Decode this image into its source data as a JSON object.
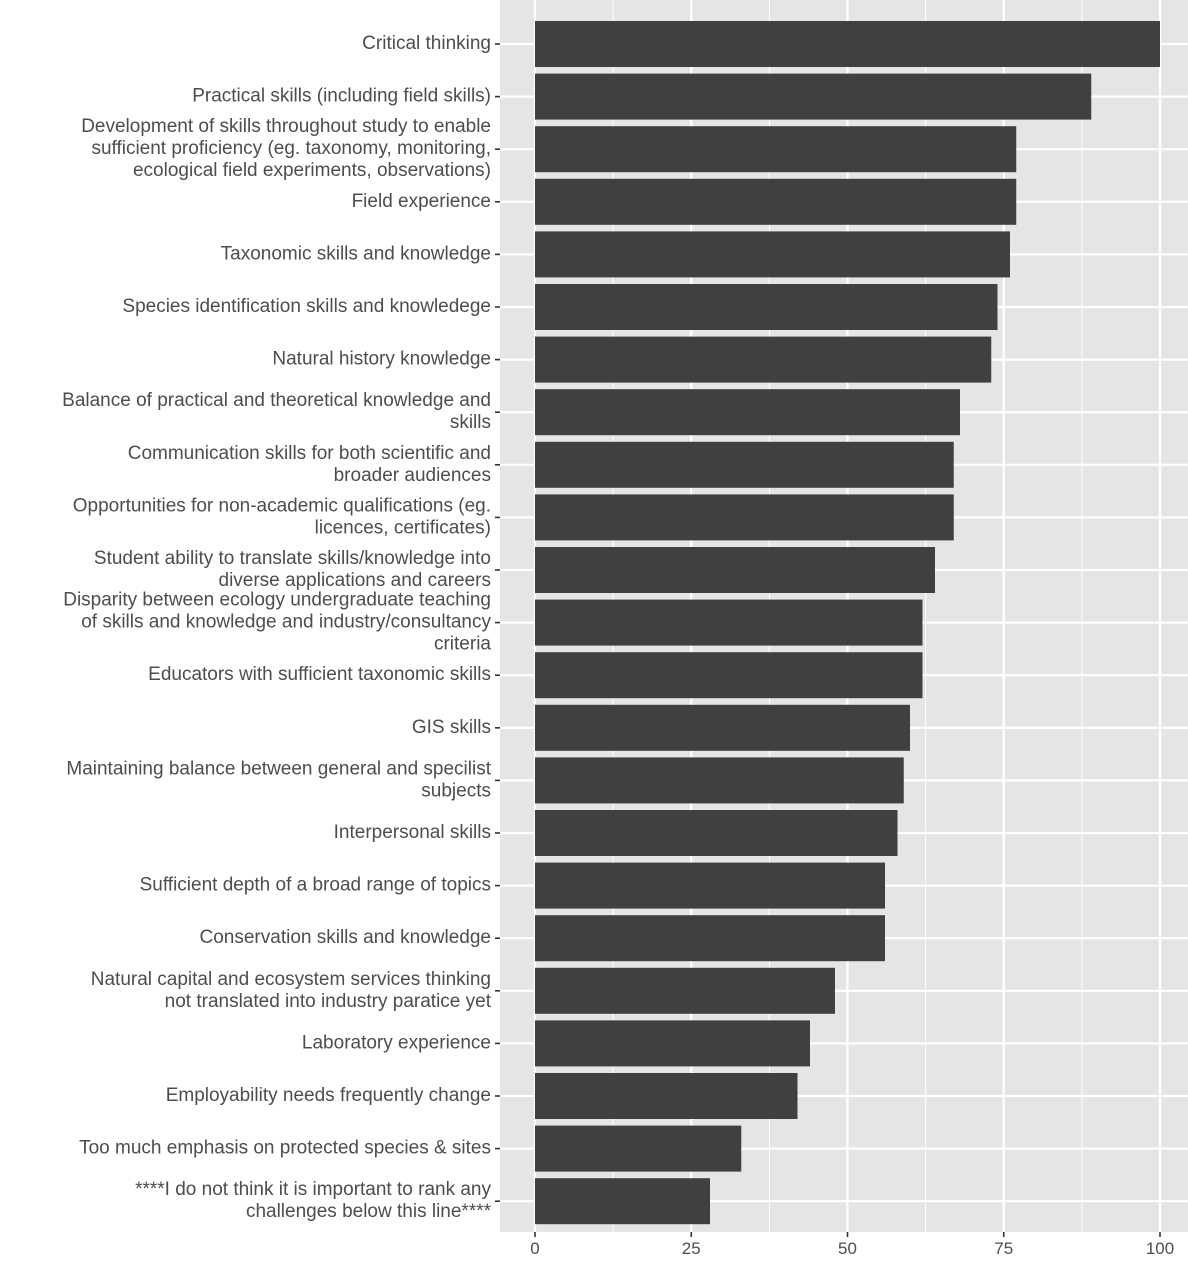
{
  "chart_data": {
    "type": "bar",
    "orientation": "horizontal",
    "title": "",
    "xlabel": "",
    "ylabel": "",
    "xlim": [
      -2,
      101
    ],
    "x_ticks": [
      0,
      25,
      50,
      75,
      100
    ],
    "grid": true,
    "legend": "none",
    "colors": {
      "panel_background": "#e5e5e5",
      "grid": "#ffffff",
      "bar": "#404040",
      "text": "#4d4d4d"
    },
    "categories": [
      [
        "Critical thinking"
      ],
      [
        "Practical skills (including field skills)"
      ],
      [
        "Development of skills throughout study to enable",
        "sufficient proficiency (eg. taxonomy, monitoring,",
        "ecological field experiments, observations)"
      ],
      [
        "Field experience"
      ],
      [
        "Taxonomic skills and knowledge"
      ],
      [
        "Species identification skills and knowledege"
      ],
      [
        "Natural history knowledge"
      ],
      [
        "Balance of practical and theoretical knowledge and",
        "skills"
      ],
      [
        "Communication skills for both scientific and",
        "broader audiences"
      ],
      [
        "Opportunities for non-academic qualifications (eg.",
        "licences, certificates)"
      ],
      [
        "Student ability to translate skills/knowledge into",
        "diverse applications and careers"
      ],
      [
        "Disparity between ecology undergraduate teaching",
        "of skills and knowledge and industry/consultancy",
        "criteria"
      ],
      [
        "Educators with sufficient taxonomic skills"
      ],
      [
        "GIS skills"
      ],
      [
        "Maintaining balance between general and specilist",
        "subjects"
      ],
      [
        "Interpersonal skills"
      ],
      [
        "Sufficient depth of a broad range of topics"
      ],
      [
        "Conservation skills and knowledge"
      ],
      [
        "Natural capital and ecosystem services thinking",
        "not translated into industry paratice yet"
      ],
      [
        "Laboratory experience"
      ],
      [
        "Employability needs frequently change"
      ],
      [
        "Too much emphasis on protected species & sites"
      ],
      [
        "****I do not think it is important to rank any",
        "challenges below this line****"
      ]
    ],
    "values": [
      100,
      89,
      77,
      77,
      76,
      74,
      73,
      68,
      67,
      67,
      64,
      62,
      62,
      60,
      59,
      58,
      56,
      56,
      48,
      44,
      42,
      33,
      28
    ]
  }
}
